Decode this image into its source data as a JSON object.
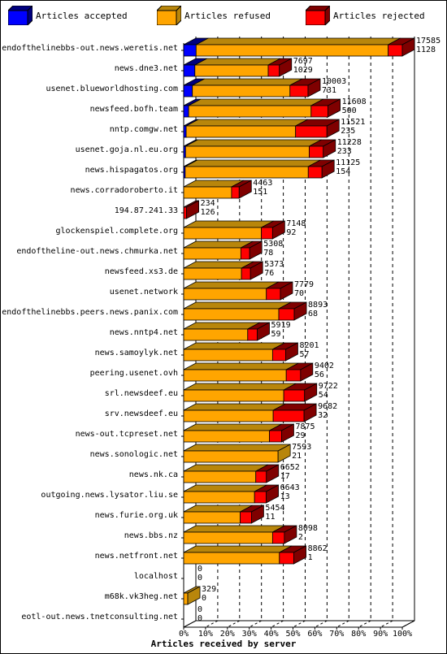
{
  "legend": [
    {
      "label": "Articles accepted",
      "color": "#0000ff"
    },
    {
      "label": "Articles refused",
      "color": "#ffa500"
    },
    {
      "label": "Articles rejected",
      "color": "#ff0000"
    }
  ],
  "chart_data": {
    "type": "bar",
    "orientation": "horizontal",
    "stacked": true,
    "xlabel": "Articles received by server",
    "ylabel": "",
    "xunit": "percent of largest total",
    "xticks": [
      "0%",
      "10%",
      "20%",
      "30%",
      "40%",
      "50%",
      "60%",
      "70%",
      "80%",
      "90%",
      "100%"
    ],
    "grid": true,
    "legend_position": "top",
    "categories": [
      "endofthelinebbs-out.news.weretis.net",
      "news.dne3.net",
      "usenet.blueworldhosting.com",
      "newsfeed.bofh.team",
      "nntp.comgw.net",
      "usenet.goja.nl.eu.org",
      "news.hispagatos.org",
      "news.corradoroberto.it",
      "194.87.241.33",
      "glockenspiel.complete.org",
      "endoftheline-out.news.chmurka.net",
      "newsfeed.xs3.de",
      "usenet.network",
      "endofthelinebbs.peers.news.panix.com",
      "news.nntp4.net",
      "news.samoylyk.net",
      "peering.usenet.ovh",
      "srl.newsdeef.eu",
      "srv.newsdeef.eu",
      "news-out.tcpreset.net",
      "news.sonologic.net",
      "news.nk.ca",
      "outgoing.news.lysator.liu.se",
      "news.furie.org.uk",
      "news.bbs.nz",
      "news.netfront.net",
      "localhost",
      "m68k.vk3heg.net",
      "eotl-out.news.tnetconsulting.net"
    ],
    "totals": [
      17585,
      7697,
      10003,
      11608,
      11521,
      11228,
      11125,
      4463,
      234,
      7148,
      5308,
      5373,
      7779,
      8893,
      5919,
      8201,
      9402,
      9722,
      9682,
      7875,
      7593,
      6652,
      6643,
      5454,
      8098,
      8862,
      0,
      329,
      0
    ],
    "secondary_values": [
      1128,
      1029,
      731,
      500,
      235,
      233,
      154,
      151,
      126,
      92,
      78,
      76,
      70,
      68,
      59,
      57,
      56,
      54,
      32,
      29,
      21,
      17,
      13,
      11,
      2,
      1,
      0,
      0,
      0
    ],
    "series": [
      {
        "name": "Articles accepted",
        "values": [
          1000,
          900,
          700,
          400,
          200,
          150,
          120,
          0,
          0,
          0,
          0,
          0,
          0,
          0,
          0,
          0,
          0,
          0,
          0,
          0,
          0,
          0,
          0,
          0,
          0,
          0,
          0,
          0,
          0
        ]
      },
      {
        "name": "Articles refused",
        "values": [
          15450,
          5900,
          7850,
          9850,
          8800,
          9950,
          9900,
          3850,
          0,
          6250,
          4600,
          4650,
          6650,
          7650,
          5150,
          7150,
          8250,
          8050,
          7200,
          6900,
          7593,
          5800,
          5700,
          4550,
          7150,
          7700,
          0,
          329,
          0
        ]
      },
      {
        "name": "Articles rejected",
        "values": [
          1135,
          897,
          1453,
          1358,
          2521,
          1128,
          1105,
          613,
          234,
          898,
          708,
          723,
          1129,
          1243,
          769,
          1051,
          1152,
          1672,
          2482,
          975,
          0,
          852,
          943,
          904,
          948,
          1162,
          0,
          0,
          0
        ]
      }
    ]
  }
}
